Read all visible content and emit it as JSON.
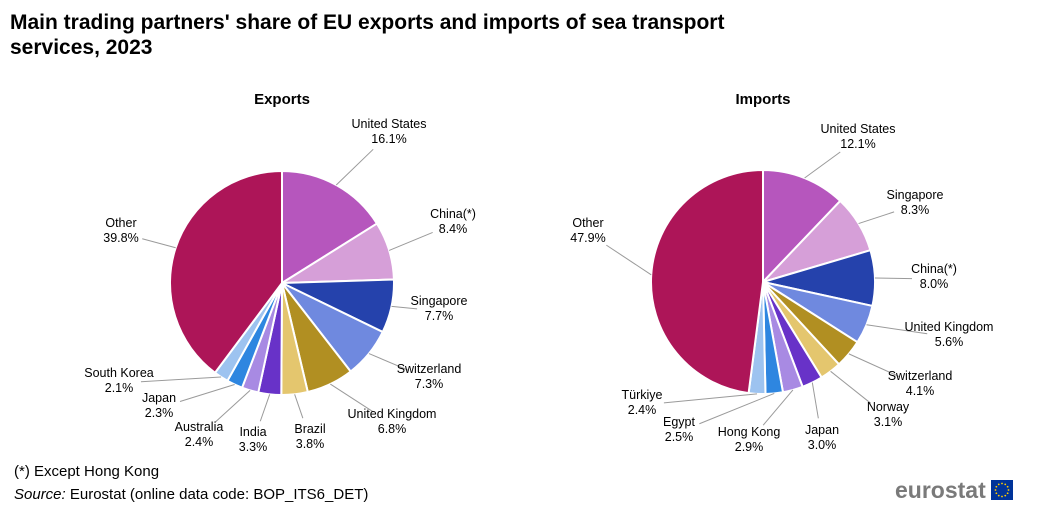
{
  "title_line1": "Main trading partners' share of EU exports and imports of sea transport",
  "title_line2": "services, 2023",
  "footnote": "(*) Except Hong Kong",
  "source_label": "Source:",
  "source_text": " Eurostat (online data code: BOP_ITS6_DET)",
  "logo_text": "eurostat",
  "chart_data": [
    {
      "type": "pie",
      "title": "Exports",
      "unit": "%",
      "slices": [
        {
          "label": "United States",
          "value": 16.1,
          "display": "16.1%",
          "color": "#B656BD"
        },
        {
          "label": "China(*)",
          "value": 8.4,
          "display": "8.4%",
          "color": "#D69FD8"
        },
        {
          "label": "Singapore",
          "value": 7.7,
          "display": "7.7%",
          "color": "#2542AC"
        },
        {
          "label": "Switzerland",
          "value": 7.3,
          "display": "7.3%",
          "color": "#6F89DF"
        },
        {
          "label": "United Kingdom",
          "value": 6.8,
          "display": "6.8%",
          "color": "#B18F22"
        },
        {
          "label": "Brazil",
          "value": 3.8,
          "display": "3.8%",
          "color": "#E4C66E"
        },
        {
          "label": "India",
          "value": 3.3,
          "display": "3.3%",
          "color": "#6832C8"
        },
        {
          "label": "Australia",
          "value": 2.4,
          "display": "2.4%",
          "color": "#A88AE3"
        },
        {
          "label": "Japan",
          "value": 2.3,
          "display": "2.3%",
          "color": "#2E86E0"
        },
        {
          "label": "South Korea",
          "value": 2.1,
          "display": "2.1%",
          "color": "#9DC3F0"
        },
        {
          "label": "Other",
          "value": 39.8,
          "display": "39.8%",
          "color": "#AD1558"
        }
      ]
    },
    {
      "type": "pie",
      "title": "Imports",
      "unit": "%",
      "slices": [
        {
          "label": "United States",
          "value": 12.1,
          "display": "12.1%",
          "color": "#B656BD"
        },
        {
          "label": "Singapore",
          "value": 8.3,
          "display": "8.3%",
          "color": "#D69FD8"
        },
        {
          "label": "China(*)",
          "value": 8.0,
          "display": "8.0%",
          "color": "#2542AC"
        },
        {
          "label": "United Kingdom",
          "value": 5.6,
          "display": "5.6%",
          "color": "#6F89DF"
        },
        {
          "label": "Switzerland",
          "value": 4.1,
          "display": "4.1%",
          "color": "#B18F22"
        },
        {
          "label": "Norway",
          "value": 3.1,
          "display": "3.1%",
          "color": "#E4C66E"
        },
        {
          "label": "Japan",
          "value": 3.0,
          "display": "3.0%",
          "color": "#6832C8"
        },
        {
          "label": "Hong Kong",
          "value": 2.9,
          "display": "2.9%",
          "color": "#A88AE3"
        },
        {
          "label": "Egypt",
          "value": 2.5,
          "display": "2.5%",
          "color": "#2E86E0"
        },
        {
          "label": "Türkiye",
          "value": 2.4,
          "display": "2.4%",
          "color": "#9DC3F0"
        },
        {
          "label": "Other",
          "value": 47.9,
          "display": "47.9%",
          "color": "#AD1558"
        }
      ]
    }
  ]
}
